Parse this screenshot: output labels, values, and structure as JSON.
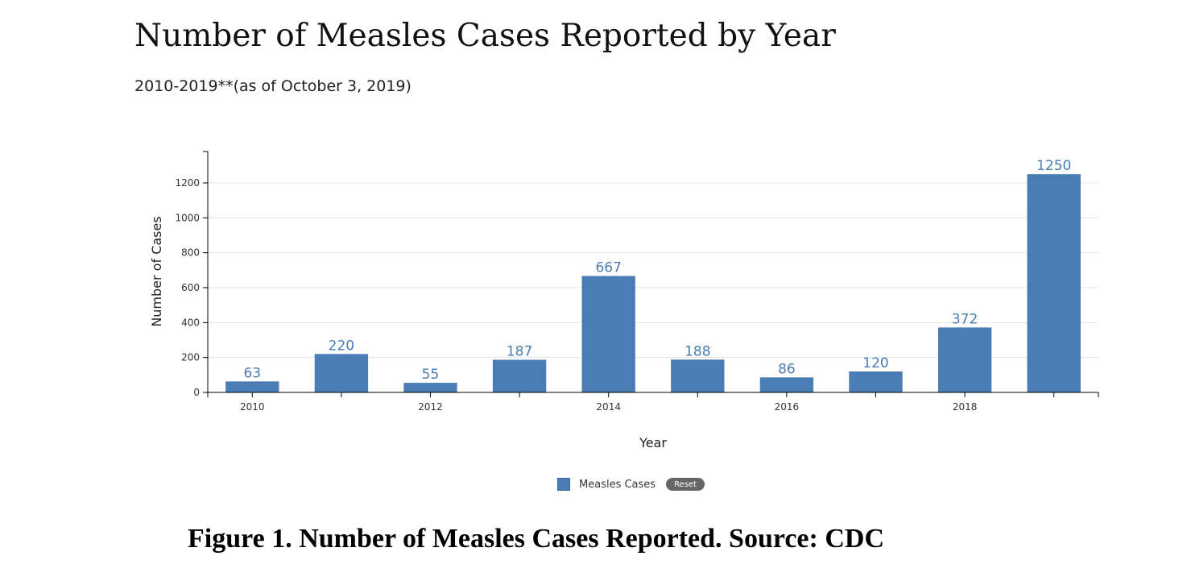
{
  "header": {
    "title": "Number of Measles Cases Reported by Year",
    "subtitle": "2010-2019**(as of October 3, 2019)"
  },
  "legend": {
    "label": "Measles Cases",
    "reset_label": "Reset",
    "swatch_color": "#4a7db4"
  },
  "caption": "Figure 1. Number of Measles Cases Reported. Source: CDC",
  "chart_data": {
    "type": "bar",
    "categories": [
      "2010",
      "2011",
      "2012",
      "2013",
      "2014",
      "2015",
      "2016",
      "2017",
      "2018",
      "2019"
    ],
    "x_tick_labels": [
      "2010",
      "",
      "2012",
      "",
      "2014",
      "",
      "2016",
      "",
      "2018",
      ""
    ],
    "series": [
      {
        "name": "Measles Cases",
        "values": [
          63,
          220,
          55,
          187,
          667,
          188,
          86,
          120,
          372,
          1250
        ]
      }
    ],
    "xlabel": "Year",
    "ylabel": "Number of Cases",
    "ylim": [
      0,
      1380
    ],
    "yticks": [
      0,
      200,
      400,
      600,
      800,
      1000,
      1200
    ],
    "grid": true,
    "bar_color": "#4a7db4",
    "label_color": "#4a7db4",
    "legend_position": "bottom"
  }
}
